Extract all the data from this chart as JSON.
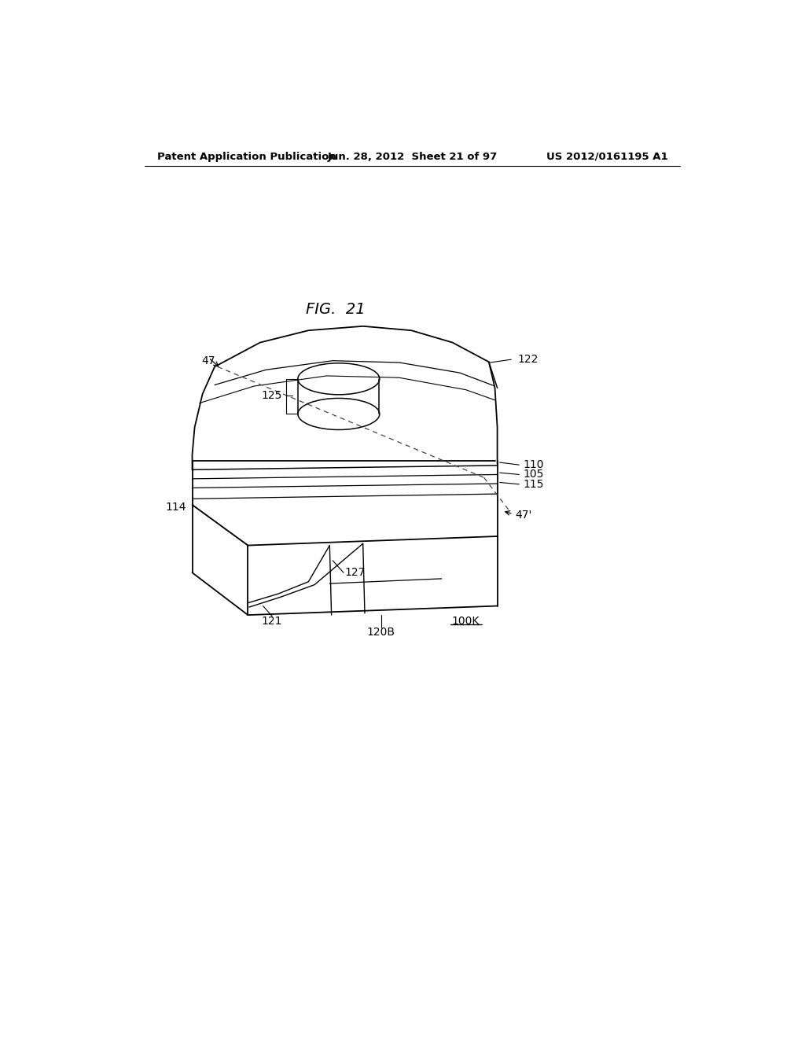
{
  "title": "FIG. 21",
  "header_left": "Patent Application Publication",
  "header_center": "Jun. 28, 2012  Sheet 21 of 97",
  "header_right": "US 2012/0161195 A1",
  "bg": "#ffffff",
  "lc": "#000000"
}
